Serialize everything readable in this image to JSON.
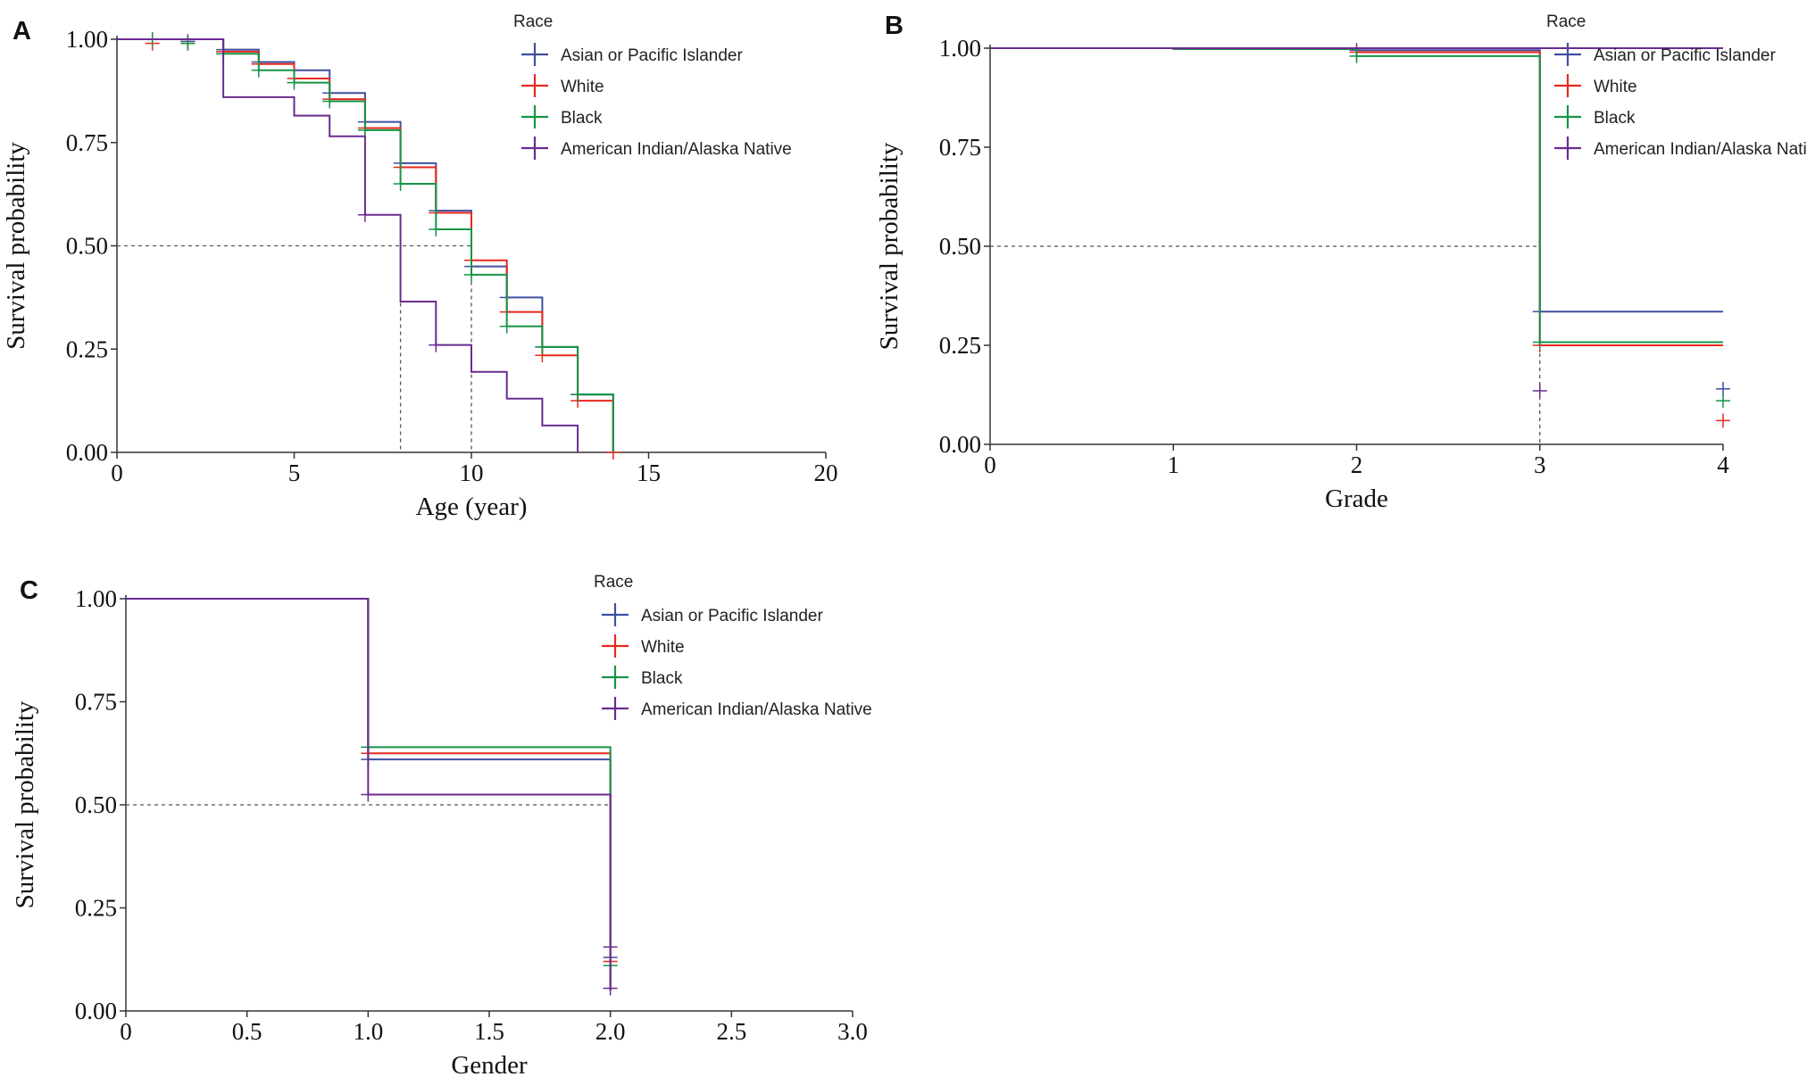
{
  "colors": {
    "asian": "#3f4fa0",
    "white": "#e8281e",
    "black": "#169447",
    "american_indian": "#6a2b91",
    "axis": "#333333",
    "reference": "#555555"
  },
  "chart_data": [
    {
      "panel": "A",
      "type": "line",
      "step": true,
      "xlabel": "Age (year)",
      "ylabel": "Survival probability",
      "xlim": [
        0,
        20
      ],
      "ylim": [
        0,
        1
      ],
      "xticks": [
        0,
        5,
        10,
        15,
        20
      ],
      "xtick_labels": [
        "0",
        "5",
        "10",
        "15",
        "20"
      ],
      "yticks": [
        0,
        0.25,
        0.5,
        0.75,
        1
      ],
      "ytick_labels": [
        "0.00",
        "0.25",
        "0.50",
        "0.75",
        "1.00"
      ],
      "legend": {
        "title": "Race",
        "placement": "top-right"
      },
      "median_lines": [
        8,
        10
      ],
      "series": [
        {
          "name": "Asian or Pacific Islander",
          "color_key": "asian",
          "x": [
            0,
            3,
            4,
            5,
            6,
            7,
            8,
            9,
            10,
            11,
            12,
            13,
            14
          ],
          "y": [
            1.0,
            0.975,
            0.945,
            0.925,
            0.87,
            0.8,
            0.7,
            0.585,
            0.45,
            0.375,
            0.255,
            0.14,
            0.0
          ],
          "censor_x": [
            1,
            2,
            3,
            4,
            5,
            6,
            7,
            8,
            9,
            10,
            11,
            12,
            13
          ],
          "censor_y": [
            1.0,
            0.995,
            0.975,
            0.945,
            0.925,
            0.87,
            0.8,
            0.7,
            0.585,
            0.45,
            0.375,
            0.255,
            0.14
          ]
        },
        {
          "name": "White",
          "color_key": "white",
          "x": [
            0,
            3,
            4,
            5,
            6,
            7,
            8,
            9,
            10,
            11,
            12,
            13,
            14
          ],
          "y": [
            1.0,
            0.97,
            0.94,
            0.905,
            0.855,
            0.785,
            0.69,
            0.58,
            0.465,
            0.34,
            0.235,
            0.125,
            0.0
          ],
          "censor_x": [
            1,
            2,
            3,
            4,
            5,
            6,
            7,
            8,
            9,
            10,
            11,
            12,
            13,
            14
          ],
          "censor_y": [
            0.99,
            0.99,
            0.97,
            0.94,
            0.905,
            0.855,
            0.785,
            0.69,
            0.58,
            0.465,
            0.34,
            0.235,
            0.125,
            0.0
          ]
        },
        {
          "name": "Black",
          "color_key": "black",
          "x": [
            0,
            3,
            4,
            5,
            6,
            7,
            8,
            9,
            10,
            11,
            12,
            13,
            14
          ],
          "y": [
            1.0,
            0.965,
            0.925,
            0.895,
            0.85,
            0.78,
            0.65,
            0.54,
            0.43,
            0.305,
            0.255,
            0.14,
            0.0
          ],
          "censor_x": [
            1,
            2,
            3,
            4,
            5,
            6,
            7,
            8,
            9,
            10,
            11,
            12,
            13
          ],
          "censor_y": [
            1.0,
            0.99,
            0.965,
            0.925,
            0.895,
            0.85,
            0.78,
            0.65,
            0.54,
            0.43,
            0.305,
            0.255,
            0.14
          ]
        },
        {
          "name": "American Indian/Alaska Native",
          "color_key": "american_indian",
          "x": [
            0,
            3,
            5,
            6,
            7,
            8,
            9,
            10,
            11,
            12,
            13
          ],
          "y": [
            1.0,
            0.86,
            0.815,
            0.765,
            0.575,
            0.365,
            0.26,
            0.195,
            0.13,
            0.065,
            0.0
          ],
          "censor_x": [
            7,
            9
          ],
          "censor_y": [
            0.575,
            0.26
          ]
        }
      ]
    },
    {
      "panel": "B",
      "type": "line",
      "step": true,
      "xlabel": "Grade",
      "ylabel": "Survival probability",
      "xlim": [
        0,
        4
      ],
      "ylim": [
        0,
        1
      ],
      "xticks": [
        0,
        1,
        2,
        3,
        4
      ],
      "xtick_labels": [
        "0",
        "1",
        "2",
        "3",
        "4"
      ],
      "yticks": [
        0,
        0.25,
        0.5,
        0.75,
        1
      ],
      "ytick_labels": [
        "0.00",
        "0.25",
        "0.50",
        "0.75",
        "1.00"
      ],
      "legend": {
        "title": "Race",
        "placement": "top-right"
      },
      "median_lines": [
        3
      ],
      "series": [
        {
          "name": "Asian or Pacific Islander",
          "color_key": "asian",
          "x": [
            0,
            1,
            2,
            3,
            4
          ],
          "y": [
            1.0,
            0.998,
            0.995,
            0.335,
            0.335
          ],
          "censor_x": [
            2,
            3,
            4
          ],
          "censor_y": [
            0.995,
            0.335,
            0.14
          ]
        },
        {
          "name": "White",
          "color_key": "white",
          "x": [
            0,
            1,
            2,
            3,
            4
          ],
          "y": [
            1.0,
            0.998,
            0.99,
            0.25,
            0.25
          ],
          "censor_x": [
            2,
            3,
            4
          ],
          "censor_y": [
            0.99,
            0.25,
            0.06
          ]
        },
        {
          "name": "Black",
          "color_key": "black",
          "x": [
            0,
            1,
            2,
            3,
            4
          ],
          "y": [
            1.0,
            0.998,
            0.98,
            0.258,
            0.258
          ],
          "censor_x": [
            2,
            3,
            4
          ],
          "censor_y": [
            0.98,
            0.258,
            0.11
          ]
        },
        {
          "name": "American Indian/Alaska Native",
          "color_key": "american_indian",
          "x": [
            0,
            1,
            2,
            3,
            4
          ],
          "y": [
            1.0,
            1.0,
            1.0,
            1.0,
            1.0
          ],
          "censor_x": [
            3
          ],
          "censor_y": [
            0.135
          ]
        }
      ]
    },
    {
      "panel": "C",
      "type": "line",
      "step": true,
      "xlabel": "Gender",
      "ylabel": "Survival probability",
      "xlim": [
        0,
        3
      ],
      "ylim": [
        0,
        1
      ],
      "xticks": [
        0,
        0.5,
        1,
        1.5,
        2,
        2.5,
        3
      ],
      "xtick_labels": [
        "0",
        "0.5",
        "1.0",
        "1.5",
        "2.0",
        "2.5",
        "3.0"
      ],
      "yticks": [
        0,
        0.25,
        0.5,
        0.75,
        1
      ],
      "ytick_labels": [
        "0.00",
        "0.25",
        "0.50",
        "0.75",
        "1.00"
      ],
      "legend": {
        "title": "Race",
        "placement": "top-right"
      },
      "median_lines": [],
      "series": [
        {
          "name": "Asian or Pacific Islander",
          "color_key": "asian",
          "x": [
            0,
            1,
            2,
            2
          ],
          "y": [
            1.0,
            0.61,
            0.61,
            0.05
          ],
          "censor_x": [
            1,
            2
          ],
          "censor_y": [
            0.61,
            0.13
          ]
        },
        {
          "name": "White",
          "color_key": "white",
          "x": [
            0,
            1,
            2,
            2
          ],
          "y": [
            1.0,
            0.625,
            0.625,
            0.05
          ],
          "censor_x": [
            1,
            2
          ],
          "censor_y": [
            0.625,
            0.12
          ]
        },
        {
          "name": "Black",
          "color_key": "black",
          "x": [
            0,
            1,
            2,
            2
          ],
          "y": [
            1.0,
            0.64,
            0.64,
            0.05
          ],
          "censor_x": [
            1,
            2
          ],
          "censor_y": [
            0.64,
            0.11
          ]
        },
        {
          "name": "American Indian/Alaska Native",
          "color_key": "american_indian",
          "x": [
            0,
            1,
            2,
            2
          ],
          "y": [
            1.0,
            0.525,
            0.525,
            0.05
          ],
          "censor_x": [
            1,
            2,
            2
          ],
          "censor_y": [
            0.525,
            0.155,
            0.055
          ]
        }
      ]
    }
  ]
}
